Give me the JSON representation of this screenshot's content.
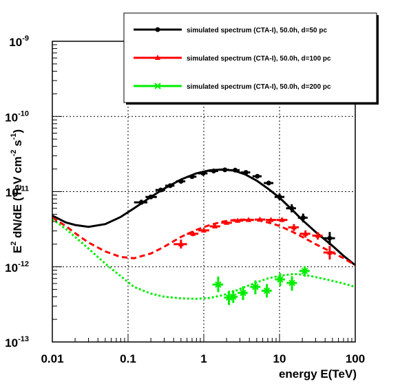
{
  "chart_data": {
    "type": "scatter",
    "xlabel": "energy E(TeV)",
    "ylabel": "E^2 dN/dE (TeV cm^-2 s^-1)",
    "log_x": true,
    "log_y": true,
    "xlim": [
      0.01,
      100
    ],
    "ylim": [
      1e-13,
      1e-09
    ],
    "grid": true,
    "legend_position": "top-right",
    "x_ticks": [
      {
        "value": 0.01,
        "label": "0.01"
      },
      {
        "value": 0.1,
        "label": "0.1"
      },
      {
        "value": 1,
        "label": "1"
      },
      {
        "value": 10,
        "label": "10"
      },
      {
        "value": 100,
        "label": "100"
      }
    ],
    "y_ticks": [
      {
        "value": 1e-13,
        "label": "10",
        "exp": "-13"
      },
      {
        "value": 1e-12,
        "label": "10",
        "exp": "-12"
      },
      {
        "value": 1e-11,
        "label": "10",
        "exp": "-11"
      },
      {
        "value": 1e-10,
        "label": "10",
        "exp": "-10"
      },
      {
        "value": 1e-09,
        "label": "10",
        "exp": "-9"
      }
    ],
    "series": [
      {
        "name": "simulated spectrum (CTA-I), 50.0h, d=50 pc",
        "color": "#000000",
        "line_style": "solid",
        "marker": "circle",
        "model": {
          "x": [
            0.01,
            0.015,
            0.02,
            0.03,
            0.05,
            0.08,
            0.12,
            0.2,
            0.3,
            0.5,
            0.8,
            1.2,
            1.8,
            2.5,
            3.5,
            5,
            7,
            10,
            15,
            20,
            30,
            50,
            70,
            100
          ],
          "y": [
            4.8e-12,
            3.9e-12,
            3.6e-12,
            3.4e-12,
            3.7e-12,
            4.6e-12,
            6e-12,
            8.5e-12,
            1.1e-11,
            1.45e-11,
            1.75e-11,
            1.92e-11,
            1.97e-11,
            1.9e-11,
            1.7e-11,
            1.4e-11,
            1.1e-11,
            8.3e-12,
            5.6e-12,
            4.2e-12,
            2.9e-12,
            1.9e-12,
            1.4e-12,
            1.05e-12
          ]
        },
        "points": [
          {
            "x": 0.15,
            "y": 7.2e-12,
            "xlo": 0.12,
            "xhi": 0.18,
            "ylo": 6.7e-12,
            "yhi": 7.8e-12
          },
          {
            "x": 0.2,
            "y": 8.5e-12,
            "xlo": 0.17,
            "xhi": 0.24,
            "ylo": 8e-12,
            "yhi": 9.1e-12
          },
          {
            "x": 0.27,
            "y": 1.05e-11,
            "xlo": 0.23,
            "xhi": 0.31,
            "ylo": 9.9e-12,
            "yhi": 1.11e-11
          },
          {
            "x": 0.36,
            "y": 1.2e-11,
            "xlo": 0.31,
            "xhi": 0.41,
            "ylo": 1.14e-11,
            "yhi": 1.27e-11
          },
          {
            "x": 0.5,
            "y": 1.37e-11,
            "xlo": 0.43,
            "xhi": 0.57,
            "ylo": 1.31e-11,
            "yhi": 1.44e-11
          },
          {
            "x": 0.7,
            "y": 1.58e-11,
            "xlo": 0.6,
            "xhi": 0.8,
            "ylo": 1.52e-11,
            "yhi": 1.65e-11
          },
          {
            "x": 0.98,
            "y": 1.75e-11,
            "xlo": 0.84,
            "xhi": 1.12,
            "ylo": 1.69e-11,
            "yhi": 1.82e-11
          },
          {
            "x": 1.35,
            "y": 1.88e-11,
            "xlo": 1.16,
            "xhi": 1.55,
            "ylo": 1.82e-11,
            "yhi": 1.95e-11
          },
          {
            "x": 1.9,
            "y": 1.95e-11,
            "xlo": 1.63,
            "xhi": 2.17,
            "ylo": 1.88e-11,
            "yhi": 2.02e-11
          },
          {
            "x": 2.6,
            "y": 1.93e-11,
            "xlo": 2.24,
            "xhi": 2.98,
            "ylo": 1.86e-11,
            "yhi": 2e-11
          },
          {
            "x": 3.6,
            "y": 1.8e-11,
            "xlo": 3.1,
            "xhi": 4.1,
            "ylo": 1.72e-11,
            "yhi": 1.88e-11
          },
          {
            "x": 5.1,
            "y": 1.6e-11,
            "xlo": 4.4,
            "xhi": 5.8,
            "ylo": 1.52e-11,
            "yhi": 1.68e-11
          },
          {
            "x": 7.2,
            "y": 1.3e-11,
            "xlo": 6.2,
            "xhi": 8.3,
            "ylo": 1.22e-11,
            "yhi": 1.38e-11
          },
          {
            "x": 10,
            "y": 8.5e-12,
            "xlo": 8.6,
            "xhi": 11.6,
            "ylo": 7.7e-12,
            "yhi": 9.4e-12
          },
          {
            "x": 14.5,
            "y": 6e-12,
            "xlo": 12.2,
            "xhi": 16.5,
            "ylo": 5.3e-12,
            "yhi": 6.8e-12
          },
          {
            "x": 20.5,
            "y": 4.5e-12,
            "xlo": 17.5,
            "xhi": 23.5,
            "ylo": 3.9e-12,
            "yhi": 5.1e-12
          },
          {
            "x": 46,
            "y": 2.4e-12,
            "xlo": 38,
            "xhi": 54,
            "ylo": 1.95e-12,
            "yhi": 2.9e-12
          }
        ]
      },
      {
        "name": "simulated spectrum (CTA-I), 50.0h, d=100 pc",
        "color": "#ff0000",
        "line_style": "dashed",
        "marker": "triangle",
        "model": {
          "x": [
            0.01,
            0.015,
            0.02,
            0.03,
            0.05,
            0.08,
            0.12,
            0.2,
            0.3,
            0.5,
            0.8,
            1.2,
            1.8,
            2.5,
            3.5,
            5,
            7,
            10,
            15,
            20,
            30,
            50,
            70,
            100
          ],
          "y": [
            4.5e-12,
            3.5e-12,
            2.8e-12,
            2.1e-12,
            1.6e-12,
            1.35e-12,
            1.3e-12,
            1.5e-12,
            1.85e-12,
            2.5e-12,
            3.1e-12,
            3.6e-12,
            4e-12,
            4.2e-12,
            4.25e-12,
            4.2e-12,
            3.9e-12,
            3.5e-12,
            2.9e-12,
            2.5e-12,
            2e-12,
            1.55e-12,
            1.3e-12,
            1.05e-12
          ]
        },
        "points": [
          {
            "x": 0.5,
            "y": 2e-12,
            "xlo": 0.4,
            "xhi": 0.6,
            "ylo": 1.75e-12,
            "yhi": 2.3e-12
          },
          {
            "x": 0.72,
            "y": 2.75e-12,
            "xlo": 0.6,
            "xhi": 0.85,
            "ylo": 2.55e-12,
            "yhi": 2.95e-12
          },
          {
            "x": 1.0,
            "y": 3.05e-12,
            "xlo": 0.85,
            "xhi": 1.18,
            "ylo": 2.85e-12,
            "yhi": 3.25e-12
          },
          {
            "x": 1.4,
            "y": 3.45e-12,
            "xlo": 1.2,
            "xhi": 1.65,
            "ylo": 3.25e-12,
            "yhi": 3.65e-12
          },
          {
            "x": 2.0,
            "y": 3.85e-12,
            "xlo": 1.7,
            "xhi": 2.35,
            "ylo": 3.65e-12,
            "yhi": 4.05e-12
          },
          {
            "x": 2.8,
            "y": 4.1e-12,
            "xlo": 2.4,
            "xhi": 3.3,
            "ylo": 3.9e-12,
            "yhi": 4.3e-12
          },
          {
            "x": 3.9,
            "y": 4.2e-12,
            "xlo": 3.3,
            "xhi": 4.6,
            "ylo": 4e-12,
            "yhi": 4.4e-12
          },
          {
            "x": 5.5,
            "y": 4.25e-12,
            "xlo": 4.7,
            "xhi": 6.5,
            "ylo": 4.05e-12,
            "yhi": 4.45e-12
          },
          {
            "x": 7.7,
            "y": 4.2e-12,
            "xlo": 6.6,
            "xhi": 9.1,
            "ylo": 4e-12,
            "yhi": 4.4e-12
          },
          {
            "x": 10.8,
            "y": 4.2e-12,
            "xlo": 9.2,
            "xhi": 12.7,
            "ylo": 3.95e-12,
            "yhi": 4.45e-12
          },
          {
            "x": 15.5,
            "y": 3.35e-12,
            "xlo": 13,
            "xhi": 18,
            "ylo": 3e-12,
            "yhi": 3.7e-12
          },
          {
            "x": 22,
            "y": 2.75e-12,
            "xlo": 18.5,
            "xhi": 25.5,
            "ylo": 2.45e-12,
            "yhi": 3.05e-12
          },
          {
            "x": 32,
            "y": 2.6e-12,
            "xlo": 27,
            "xhi": 37,
            "ylo": 2.3e-12,
            "yhi": 2.9e-12
          },
          {
            "x": 46,
            "y": 1.55e-12,
            "xlo": 38,
            "xhi": 54,
            "ylo": 1.25e-12,
            "yhi": 1.9e-12
          }
        ]
      },
      {
        "name": "simulated spectrum (CTA-I), 50.0h, d=200 pc",
        "color": "#00ee00",
        "line_style": "dotted",
        "marker": "cross",
        "model": {
          "x": [
            0.01,
            0.015,
            0.02,
            0.03,
            0.05,
            0.08,
            0.12,
            0.2,
            0.3,
            0.5,
            0.8,
            1.2,
            1.8,
            2.5,
            3.5,
            5,
            7,
            10,
            15,
            20,
            30,
            50,
            70,
            100
          ],
          "y": [
            4.3e-12,
            3.2e-12,
            2.5e-12,
            1.75e-12,
            1.1e-12,
            7.5e-13,
            5.4e-13,
            4.4e-13,
            4e-13,
            3.8e-13,
            3.75e-13,
            3.85e-13,
            4.2e-13,
            4.7e-13,
            5.4e-13,
            6.2e-13,
            7e-13,
            7.6e-13,
            8e-13,
            7.9e-13,
            7.3e-13,
            6.5e-13,
            6e-13,
            5.4e-13
          ]
        },
        "points": [
          {
            "x": 1.55,
            "y": 5.8e-13,
            "xlo": 1.3,
            "xhi": 1.8,
            "ylo": 4.6e-13,
            "yhi": 7.4e-13
          },
          {
            "x": 2.15,
            "y": 3.9e-13,
            "xlo": 1.85,
            "xhi": 2.5,
            "ylo": 3.1e-13,
            "yhi": 4.8e-13
          },
          {
            "x": 2.45,
            "y": 4e-13,
            "xlo": 2.1,
            "xhi": 2.8,
            "ylo": 3.3e-13,
            "yhi": 4.9e-13
          },
          {
            "x": 3.3,
            "y": 4.5e-13,
            "xlo": 2.8,
            "xhi": 3.8,
            "ylo": 3.6e-13,
            "yhi": 5.5e-13
          },
          {
            "x": 4.8,
            "y": 5.4e-13,
            "xlo": 4.1,
            "xhi": 5.6,
            "ylo": 4.3e-13,
            "yhi": 6.6e-13
          },
          {
            "x": 6.8,
            "y": 4.8e-13,
            "xlo": 5.8,
            "xhi": 7.9,
            "ylo": 3.9e-13,
            "yhi": 5.9e-13
          },
          {
            "x": 10.2,
            "y": 6.8e-13,
            "xlo": 8.7,
            "xhi": 11.8,
            "ylo": 5.5e-13,
            "yhi": 8.2e-13
          },
          {
            "x": 14.6,
            "y": 6.1e-13,
            "xlo": 12.4,
            "xhi": 17,
            "ylo": 4.8e-13,
            "yhi": 7.5e-13
          },
          {
            "x": 21.5,
            "y": 8.8e-13,
            "xlo": 18.3,
            "xhi": 25,
            "ylo": 7.4e-13,
            "yhi": 1.02e-12
          }
        ]
      }
    ]
  }
}
